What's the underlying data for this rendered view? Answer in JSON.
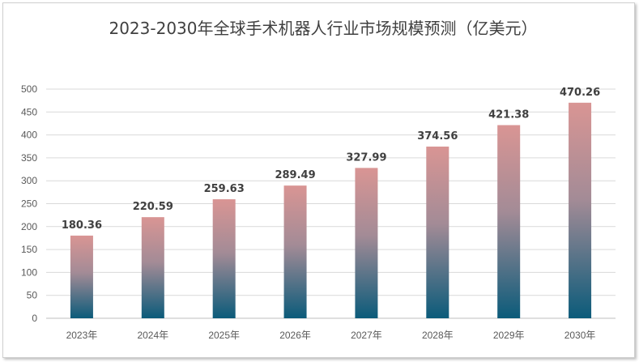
{
  "chart_data": {
    "type": "bar",
    "title": "2023-2030年全球手术机器人行业市场规模预测（亿美元）",
    "xlabel": "",
    "ylabel": "",
    "categories": [
      "2023年",
      "2024年",
      "2025年",
      "2026年",
      "2027年",
      "2028年",
      "2029年",
      "2030年"
    ],
    "values": [
      180.36,
      220.59,
      259.63,
      289.49,
      327.99,
      374.56,
      421.38,
      470.26
    ],
    "value_labels": [
      "180.36",
      "220.59",
      "259.63",
      "289.49",
      "327.99",
      "374.56",
      "421.38",
      "470.26"
    ],
    "yticks": [
      "0",
      "50",
      "100",
      "150",
      "200",
      "250",
      "300",
      "350",
      "400",
      "450",
      "500"
    ],
    "ylim": [
      0,
      500
    ],
    "grid": true,
    "legend": "none",
    "colors": {
      "bar_top": "#d99594",
      "bar_bottom": "#0b5b7a",
      "grid": "#d9d9d9",
      "axis": "#bfbfbf"
    }
  }
}
